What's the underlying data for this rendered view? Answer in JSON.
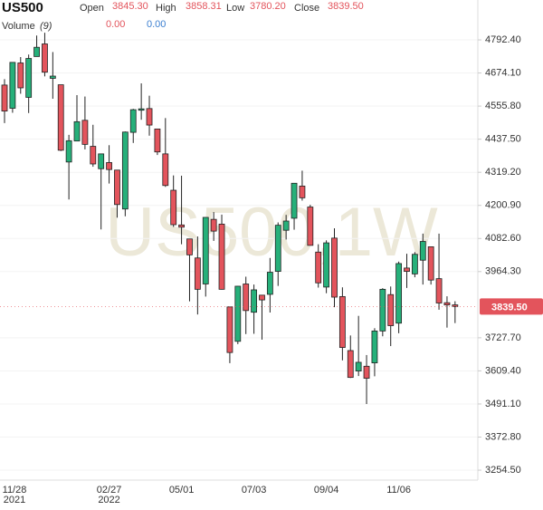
{
  "header": {
    "symbol": "US500",
    "open_label": "Open",
    "open": "3845.30",
    "high_label": "High",
    "high": "3858.31",
    "low_label": "Low",
    "low": "3780.20",
    "close_label": "Close",
    "close": "3839.50",
    "volume_label": "Volume",
    "volume_period": "(9)",
    "volume_a": "0.00",
    "volume_b": "0.00"
  },
  "chart_data": {
    "type": "candlestick",
    "watermark": "US500,1W",
    "categories": [
      "11/28",
      null,
      null,
      null,
      null,
      null,
      null,
      null,
      null,
      null,
      null,
      null,
      null,
      "02/27",
      null,
      null,
      null,
      null,
      null,
      null,
      null,
      null,
      "05/01",
      null,
      null,
      null,
      null,
      null,
      null,
      null,
      null,
      "07/03",
      null,
      null,
      null,
      null,
      null,
      null,
      null,
      null,
      "09/04",
      null,
      null,
      null,
      null,
      null,
      null,
      null,
      null,
      "11/06",
      null,
      null,
      null,
      null,
      null,
      null,
      null
    ],
    "category_years": [
      "2021",
      null,
      null,
      null,
      null,
      null,
      null,
      null,
      null,
      null,
      null,
      null,
      null,
      "2022",
      null,
      null,
      null,
      null,
      null,
      null,
      null,
      null,
      null,
      null,
      null,
      null,
      null,
      null,
      null,
      null,
      null,
      null,
      null,
      null,
      null,
      null,
      null,
      null,
      null,
      null,
      null,
      null,
      null,
      null,
      null,
      null,
      null,
      null,
      null,
      null,
      null,
      null,
      null,
      null,
      null,
      null,
      null
    ],
    "open": [
      4631,
      4548,
      4710,
      4587,
      4733,
      4778,
      4655,
      4632,
      4356,
      4431,
      4505,
      4412,
      4332,
      4354,
      4327,
      4188,
      4462,
      4541,
      4547,
      4474,
      4385,
      4255,
      4131,
      4081,
      4013,
      3920,
      4151,
      4134,
      3838,
      3715,
      3920,
      3819,
      3880,
      3883,
      3965,
      4112,
      4155,
      4270,
      4195,
      4034,
      3909,
      4084,
      3875,
      3682,
      3609,
      3626,
      3638,
      3752,
      3882,
      3780,
      3977,
      3956,
      4005,
      4053,
      3939,
      3853,
      3845.3
    ],
    "high": [
      4652,
      4713,
      4731,
      4740,
      4808,
      4818,
      4749,
      4632,
      4453,
      4595,
      4590,
      4489,
      4385,
      4416,
      4327,
      4465,
      4546,
      4637,
      4593,
      4472,
      4513,
      4308,
      4307,
      4081,
      4090,
      4158,
      4177,
      4168,
      3838,
      3913,
      3946,
      3918,
      3880,
      4013,
      4140,
      4167,
      4280,
      4325,
      4203,
      4062,
      4076,
      4119,
      3908,
      3736,
      3806,
      3666,
      3762,
      3905,
      3911,
      4000,
      4028,
      4034,
      4100,
      4053,
      4100,
      3876,
      3858.31
    ],
    "low": [
      4495,
      4532,
      4600,
      4531,
      4733,
      4662,
      4582,
      4395,
      4222,
      4430,
      4401,
      4339,
      4115,
      4279,
      4157,
      4162,
      4424,
      4507,
      4450,
      4381,
      4267,
      4124,
      4062,
      3858,
      3811,
      3875,
      4074,
      3900,
      3637,
      3705,
      3741,
      3742,
      3721,
      3818,
      3913,
      4079,
      4114,
      4218,
      4058,
      3907,
      3887,
      3837,
      3647,
      3584,
      3591,
      3491,
      3590,
      3733,
      3698,
      3744,
      3906,
      3944,
      3918,
      3918,
      3828,
      3764,
      3780.2
    ],
    "close": [
      4538,
      4712,
      4621,
      4726,
      4766,
      4677,
      4663,
      4398,
      4432,
      4500,
      4419,
      4349,
      4385,
      4329,
      4204,
      4463,
      4543,
      4546,
      4488,
      4392,
      4272,
      4132,
      4123,
      4024,
      3901,
      4158,
      4109,
      3901,
      3675,
      3912,
      3825,
      3899,
      3863,
      3962,
      4130,
      4145,
      4280,
      4228,
      4058,
      3924,
      4067,
      3873,
      3693,
      3586,
      3640,
      3583,
      3752,
      3901,
      3771,
      3993,
      3965,
      4026,
      4072,
      3934,
      3852,
      3845,
      3839.5
    ],
    "up_color": "#26b07a",
    "down_color": "#e3545c",
    "last_price": {
      "value": 3839.5,
      "label": "3839.50"
    },
    "ylim": [
      3219,
      4935
    ],
    "yticks": [
      {
        "value": 4792.4,
        "label": "4792.40"
      },
      {
        "value": 4674.1,
        "label": "4674.10"
      },
      {
        "value": 4555.8,
        "label": "4555.80"
      },
      {
        "value": 4437.5,
        "label": "4437.50"
      },
      {
        "value": 4319.2,
        "label": "4319.20"
      },
      {
        "value": 4200.9,
        "label": "4200.90"
      },
      {
        "value": 4082.6,
        "label": "4082.60"
      },
      {
        "value": 3964.3,
        "label": "3964.30"
      },
      {
        "value": 3727.7,
        "label": "3727.70"
      },
      {
        "value": 3609.4,
        "label": "3609.40"
      },
      {
        "value": 3491.1,
        "label": "3491.10"
      },
      {
        "value": 3372.8,
        "label": "3372.80"
      },
      {
        "value": 3254.5,
        "label": "3254.50"
      }
    ],
    "grid": true
  }
}
